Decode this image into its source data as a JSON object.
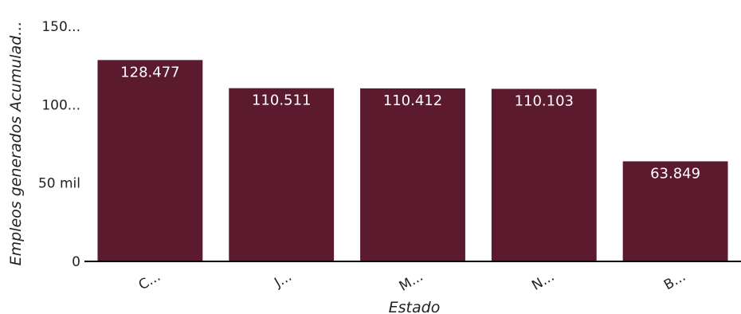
{
  "chart_data": {
    "type": "bar",
    "title": "",
    "xlabel": "Estado",
    "ylabel": "Empleos generados Acumulad...",
    "categories": [
      "C...",
      "J...",
      "M...",
      "N...",
      "B..."
    ],
    "values": [
      128477,
      110511,
      110412,
      110103,
      63849
    ],
    "data_labels": [
      "128.477",
      "110.511",
      "110.412",
      "110.103",
      "63.849"
    ],
    "ylim": [
      0,
      150000
    ],
    "y_ticks": [
      {
        "value": 0,
        "label": "0"
      },
      {
        "value": 50000,
        "label": "50 mil"
      },
      {
        "value": 100000,
        "label": "100..."
      },
      {
        "value": 150000,
        "label": "150..."
      }
    ],
    "grid": false,
    "legend": "none",
    "bar_color": "#5c1a2e",
    "axis_color": "#000000"
  }
}
